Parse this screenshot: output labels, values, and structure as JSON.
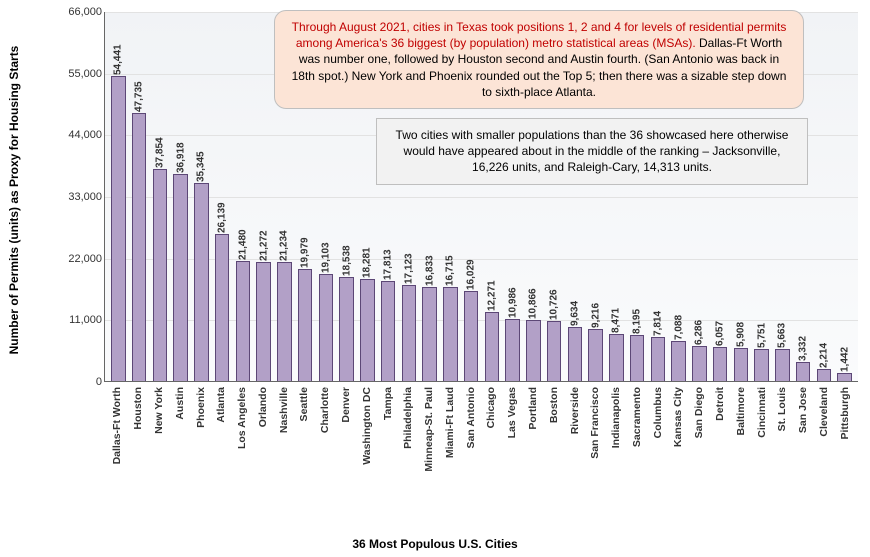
{
  "chart": {
    "type": "bar",
    "y_axis_label": "Number of Permits (units) as Proxy for Housing Starts",
    "x_axis_label": "36 Most Populous U.S. Cities",
    "y_ticks": [
      0,
      11000,
      22000,
      33000,
      44000,
      55000,
      66000
    ],
    "y_tick_labels": [
      "0",
      "11,000",
      "22,000",
      "33,000",
      "44,000",
      "55,000",
      "66,000"
    ],
    "y_max": 66000,
    "bar_fill": "#b2a0c7",
    "bar_border": "#5c4776",
    "plot_bg_top": "#f1f3f6",
    "plot_bg_bottom": "#fafbfc",
    "grid_color": "#e2e2e2",
    "label_fontsize": 12,
    "tick_fontsize": 11,
    "value_fontsize": 10,
    "categories": [
      "Dallas-Ft Worth",
      "Houston",
      "New York",
      "Austin",
      "Phoenix",
      "Atlanta",
      "Los Angeles",
      "Orlando",
      "Nashville",
      "Seattle",
      "Charlotte",
      "Denver",
      "Washington DC",
      "Tampa",
      "Philadelphia",
      "Minneap-St. Paul",
      "Miami-Ft Laud",
      "San Antonio",
      "Chicago",
      "Las Vegas",
      "Portland",
      "Boston",
      "Riverside",
      "San Francisco",
      "Indianapolis",
      "Sacramento",
      "Columbus",
      "Kansas City",
      "San Diego",
      "Detroit",
      "Baltimore",
      "Cincinnati",
      "St. Louis",
      "San Jose",
      "Cleveland",
      "Pittsburgh"
    ],
    "values": [
      54441,
      47735,
      37854,
      36918,
      35345,
      26139,
      21480,
      21272,
      21234,
      19979,
      19103,
      18538,
      18281,
      17813,
      17123,
      16833,
      16715,
      16029,
      12271,
      10986,
      10866,
      10726,
      9634,
      9216,
      8471,
      8195,
      7814,
      7088,
      6286,
      6057,
      5908,
      5751,
      5663,
      3332,
      2214,
      1442
    ],
    "value_labels": [
      "54,441",
      "47,735",
      "37,854",
      "36,918",
      "35,345",
      "26,139",
      "21,480",
      "21,272",
      "21,234",
      "19,979",
      "19,103",
      "18,538",
      "18,281",
      "17,813",
      "17,123",
      "16,833",
      "16,715",
      "16,029",
      "12,271",
      "10,986",
      "10,866",
      "10,726",
      "9,634",
      "9,216",
      "8,471",
      "8,195",
      "7,814",
      "7,088",
      "6,286",
      "6,057",
      "5,908",
      "5,751",
      "5,663",
      "3,332",
      "2,214",
      "1,442"
    ]
  },
  "callouts": {
    "a": {
      "header": "Through August 2021, cities in Texas took positions 1, 2 and 4 for levels of residential permits among America's 36 biggest (by population) metro statistical areas (MSAs).",
      "body": " Dallas-Ft Worth was number one, followed by Houston second and Austin fourth. (San Antonio was back in 18th spot.) New York and Phoenix rounded out the Top 5; then there was a sizable step down to sixth-place Atlanta.",
      "bg": "#fce4d6",
      "header_color": "#c00000"
    },
    "b": {
      "body": "Two cities with smaller populations than the 36 showcased here otherwise would have appeared about in the middle of the ranking – Jacksonville, 16,226 units, and Raleigh-Cary, 14,313 units.",
      "bg": "#f2f2f2"
    }
  }
}
